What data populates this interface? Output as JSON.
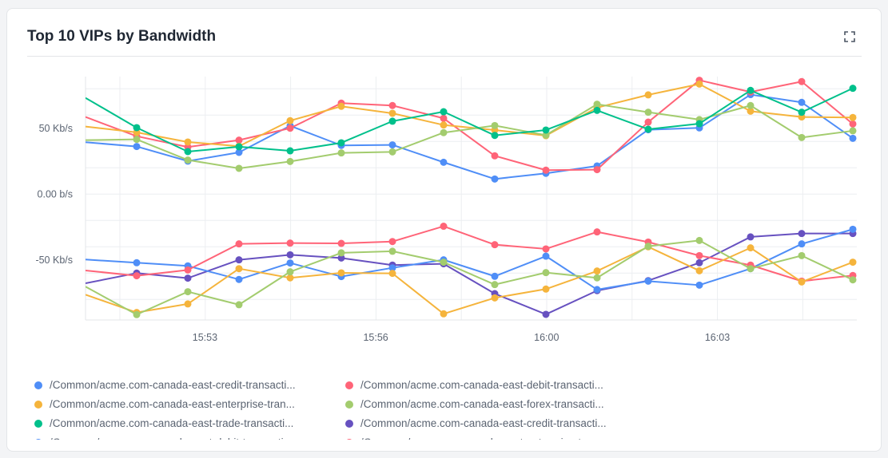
{
  "card": {
    "title": "Top 10 VIPs by Bandwidth",
    "expand_icon": "expand-icon"
  },
  "chart_data": {
    "type": "line",
    "title": "Top 10 VIPs by Bandwidth",
    "xlabel": "",
    "ylabel": "",
    "ylim": [
      -95.6,
      89.3
    ],
    "y_unit": "Kb/s",
    "y_ticks": [
      {
        "value": 50,
        "label": "50 Kb/s"
      },
      {
        "value": 0,
        "label": "0.00 b/s"
      },
      {
        "value": -50,
        "label": "-50 Kb/s"
      }
    ],
    "y_grid": [
      80,
      60,
      40,
      20,
      0,
      -20,
      -40,
      -60,
      -80
    ],
    "x_ticks": [
      {
        "at": 2.34,
        "label": "15:53"
      },
      {
        "at": 4.0,
        "label": "15:56"
      },
      {
        "at": 5.66,
        "label": "16:00"
      },
      {
        "at": 7.34,
        "label": "16:03"
      }
    ],
    "x_grid": [
      0.67,
      2.34,
      4.0,
      5.66,
      7.34,
      9.0,
      10.67,
      12.34,
      14.0
    ],
    "grid": true,
    "legend_position": "bottom",
    "series": [
      {
        "name": "/Common/acme.com-canada-east-credit-transacti...",
        "color": "#4f8ef7",
        "values": [
          39.4,
          36.2,
          25.1,
          31.7,
          51.9,
          37.0,
          37.4,
          24.2,
          11.5,
          15.8,
          21.4,
          48.9,
          50.3,
          75.6,
          69.7,
          42.4
        ]
      },
      {
        "name": "/Common/acme.com-canada-east-debit-transacti...",
        "color": "#ff6478",
        "values": [
          58.6,
          44.0,
          35.8,
          41.0,
          50.1,
          69.1,
          67.3,
          57.6,
          29.1,
          18.2,
          18.6,
          54.7,
          86.5,
          77.6,
          85.5,
          53.3
        ]
      },
      {
        "name": "/Common/acme.com-canada-east-enterprise-tran...",
        "color": "#f5b43c",
        "values": [
          51.3,
          46.9,
          39.6,
          36.4,
          55.8,
          66.7,
          61.4,
          52.5,
          48.7,
          44.4,
          65.7,
          75.4,
          83.6,
          63.0,
          58.6,
          58.2
        ]
      },
      {
        "name": "/Common/acme.com-canada-east-forex-transacti...",
        "color": "#a3cc6e",
        "values": [
          41.0,
          41.6,
          25.9,
          19.6,
          24.8,
          31.3,
          32.1,
          46.7,
          52.1,
          44.8,
          68.3,
          62.2,
          56.6,
          67.3,
          43.0,
          48.1
        ]
      },
      {
        "name": "/Common/acme.com-canada-east-trade-transacti...",
        "color": "#00c08b",
        "values": [
          73.1,
          50.5,
          32.3,
          36.0,
          32.9,
          39.0,
          55.4,
          62.6,
          44.6,
          48.7,
          63.6,
          49.3,
          53.5,
          78.8,
          62.2,
          80.4
        ]
      },
      {
        "name": "/Common/acme.com-canada-east-credit-transacti...",
        "color": "#6751c0",
        "values": [
          -67.7,
          -60.0,
          -63.8,
          -49.9,
          -46.1,
          -48.5,
          -53.9,
          -52.9,
          -75.6,
          -91.3,
          -73.3,
          -65.7,
          -52.1,
          -32.5,
          -29.9,
          -29.9
        ]
      },
      {
        "name": "/Common/acme.com-canada-east-debit-transacti...",
        "color": "#4f8ef7",
        "values": [
          -49.7,
          -52.1,
          -54.5,
          -64.8,
          -52.3,
          -62.6,
          -56.0,
          -49.9,
          -62.4,
          -47.1,
          -72.5,
          -66.1,
          -69.1,
          -56.6,
          -37.8,
          -26.7
        ]
      },
      {
        "name": "/Common/acme.com-canada-east-enterprise-tran...",
        "color": "#ff6478",
        "values": [
          -58.0,
          -62.0,
          -57.6,
          -37.8,
          -37.2,
          -37.4,
          -36.0,
          -24.4,
          -38.4,
          -41.6,
          -28.7,
          -36.4,
          -46.7,
          -53.9,
          -66.1,
          -61.8
        ]
      },
      {
        "color": "#f5b43c",
        "values": [
          -76.4,
          -89.9,
          -83.4,
          -56.6,
          -63.6,
          -59.8,
          -60.2,
          -90.9,
          -78.8,
          -72.1,
          -58.4,
          -40.0,
          -58.2,
          -40.8,
          -66.7,
          -51.7
        ]
      },
      {
        "color": "#a3cc6e",
        "values": [
          -70.3,
          -91.5,
          -74.1,
          -84.0,
          -59.0,
          -44.6,
          -43.4,
          -51.7,
          -68.7,
          -59.6,
          -63.6,
          -39.6,
          -35.2,
          -56.6,
          -46.7,
          -65.1
        ]
      }
    ]
  }
}
